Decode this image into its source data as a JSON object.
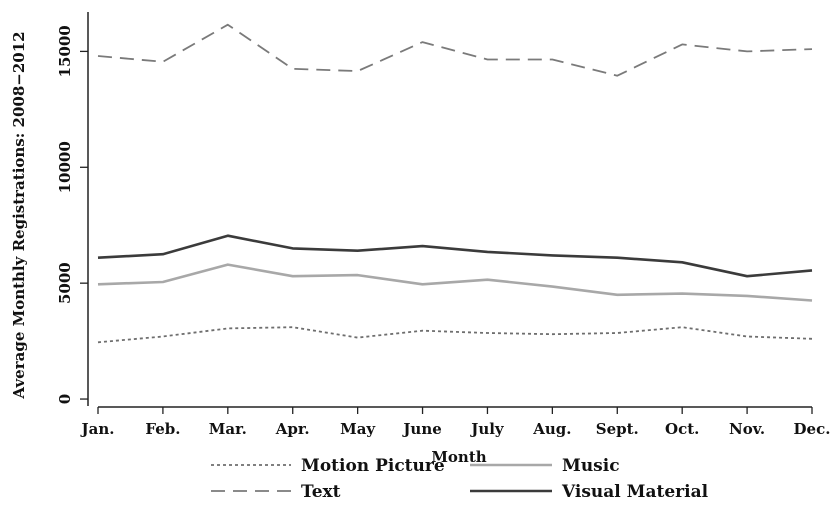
{
  "chart_data": {
    "type": "line",
    "title": "",
    "xlabel": "Month",
    "ylabel": "Average Monthly Registrations: 2008−2012",
    "categories": [
      "Jan.",
      "Feb.",
      "Mar.",
      "Apr.",
      "May",
      "June",
      "July",
      "Aug.",
      "Sept.",
      "Oct.",
      "Nov.",
      "Dec."
    ],
    "ylim": [
      -300,
      16700
    ],
    "yticks": [
      0,
      5000,
      10000,
      15000
    ],
    "ytick_labels": [
      "0",
      "5000",
      "10000",
      "15000"
    ],
    "grid": false,
    "legend_position": "bottom",
    "series": [
      {
        "name": "Motion Picture",
        "style": "dotted",
        "color": "#6e6e6e",
        "values": [
          2450,
          2700,
          3050,
          3100,
          2650,
          2950,
          2850,
          2800,
          2850,
          3100,
          2700,
          2600
        ]
      },
      {
        "name": "Music",
        "style": "solid",
        "color": "#a8a8a8",
        "values": [
          4950,
          5050,
          5800,
          5300,
          5350,
          4950,
          5150,
          4850,
          4500,
          4550,
          4450,
          4250
        ]
      },
      {
        "name": "Text",
        "style": "dashed",
        "color": "#7a7a7a",
        "values": [
          14800,
          14550,
          16150,
          14250,
          14150,
          15400,
          14650,
          14650,
          13950,
          15300,
          15000,
          15100
        ]
      },
      {
        "name": "Visual Material",
        "style": "solid",
        "color": "#3b3b3b",
        "values": [
          6100,
          6250,
          7050,
          6500,
          6400,
          6600,
          6350,
          6200,
          6100,
          5900,
          5300,
          5550
        ]
      }
    ]
  }
}
